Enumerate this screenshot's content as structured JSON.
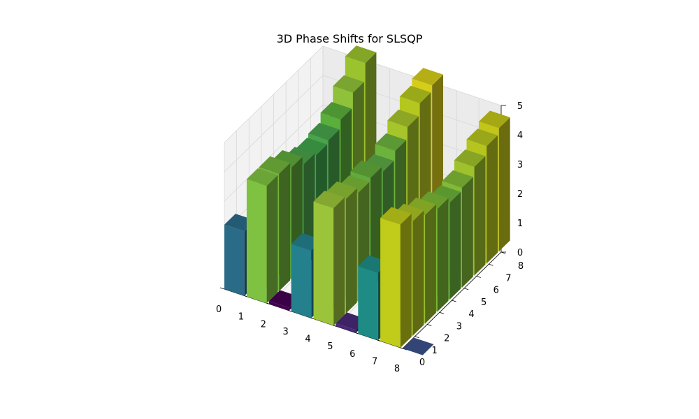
{
  "chart_data": {
    "type": "bar3d",
    "title": "3D Phase Shifts for SLSQP",
    "xlabel": "",
    "ylabel": "",
    "zlabel": "",
    "x_ticks": [
      "0",
      "1",
      "2",
      "3",
      "4",
      "5",
      "6",
      "7",
      "8"
    ],
    "y_ticks": [
      "0",
      "1",
      "2",
      "3",
      "4",
      "5",
      "6",
      "7",
      "8"
    ],
    "z_ticks": [
      "0",
      "1",
      "2",
      "3",
      "4",
      "5"
    ],
    "xlim": [
      0,
      8
    ],
    "ylim": [
      0,
      8
    ],
    "zlim": [
      0,
      5
    ],
    "grid": true,
    "colormap": "viridis",
    "bar_size": 0.9,
    "bars": [
      {
        "x": 0,
        "y": 0,
        "z": 2.2,
        "color": "#2a6b88"
      },
      {
        "x": 0,
        "y": 3,
        "z": 2.4,
        "color": "#2d7a8d"
      },
      {
        "x": 0,
        "y": 6,
        "z": 2.2,
        "color": "#1f8a8a"
      },
      {
        "x": 0,
        "y": 8,
        "z": 2.4,
        "color": "#1c6f7a"
      },
      {
        "x": 1,
        "y": 0,
        "z": 4.0,
        "color": "#7fc241"
      },
      {
        "x": 1,
        "y": 1,
        "z": 4.0,
        "color": "#72b43c"
      },
      {
        "x": 1,
        "y": 2,
        "z": 3.8,
        "color": "#5ea83b"
      },
      {
        "x": 1,
        "y": 3,
        "z": 3.5,
        "color": "#4aa04a"
      },
      {
        "x": 1,
        "y": 4,
        "z": 3.4,
        "color": "#3fa34a"
      },
      {
        "x": 1,
        "y": 5,
        "z": 3.5,
        "color": "#48a34b"
      },
      {
        "x": 1,
        "y": 6,
        "z": 3.8,
        "color": "#5aae3c"
      },
      {
        "x": 1,
        "y": 7,
        "z": 4.3,
        "color": "#8fc23a"
      },
      {
        "x": 1,
        "y": 8,
        "z": 4.9,
        "color": "#9bc32e"
      },
      {
        "x": 2,
        "y": 0,
        "z": 0.1,
        "color": "#440154"
      },
      {
        "x": 3,
        "y": 0,
        "z": 2.3,
        "color": "#24808d"
      },
      {
        "x": 4,
        "y": 0,
        "z": 4.0,
        "color": "#9bc43a"
      },
      {
        "x": 4,
        "y": 1,
        "z": 3.9,
        "color": "#8dbf36"
      },
      {
        "x": 4,
        "y": 2,
        "z": 3.7,
        "color": "#7bb838"
      },
      {
        "x": 4,
        "y": 3,
        "z": 3.8,
        "color": "#62aa3b"
      },
      {
        "x": 4,
        "y": 4,
        "z": 3.6,
        "color": "#5aa845"
      },
      {
        "x": 4,
        "y": 5,
        "z": 3.9,
        "color": "#6cb33d"
      },
      {
        "x": 4,
        "y": 6,
        "z": 4.3,
        "color": "#a6c52a"
      },
      {
        "x": 4,
        "y": 7,
        "z": 4.7,
        "color": "#b5c71f"
      },
      {
        "x": 4,
        "y": 8,
        "z": 4.9,
        "color": "#d6cd19"
      },
      {
        "x": 5,
        "y": 0,
        "z": 0.1,
        "color": "#482878"
      },
      {
        "x": 6,
        "y": 0,
        "z": 2.3,
        "color": "#1e8c85"
      },
      {
        "x": 7,
        "y": 0,
        "z": 4.2,
        "color": "#c0cb1a"
      },
      {
        "x": 7,
        "y": 1,
        "z": 3.9,
        "color": "#aac323"
      },
      {
        "x": 7,
        "y": 2,
        "z": 3.7,
        "color": "#97bf2c"
      },
      {
        "x": 7,
        "y": 3,
        "z": 3.5,
        "color": "#7ab834"
      },
      {
        "x": 7,
        "y": 4,
        "z": 3.3,
        "color": "#6ab23a"
      },
      {
        "x": 7,
        "y": 5,
        "z": 3.4,
        "color": "#80ba36"
      },
      {
        "x": 7,
        "y": 6,
        "z": 3.7,
        "color": "#9fc12c"
      },
      {
        "x": 7,
        "y": 7,
        "z": 4.0,
        "color": "#b6c51e"
      },
      {
        "x": 7,
        "y": 8,
        "z": 4.2,
        "color": "#c3c517"
      },
      {
        "x": 8,
        "y": 0,
        "z": 0.0,
        "color": "#3b518b"
      }
    ]
  }
}
